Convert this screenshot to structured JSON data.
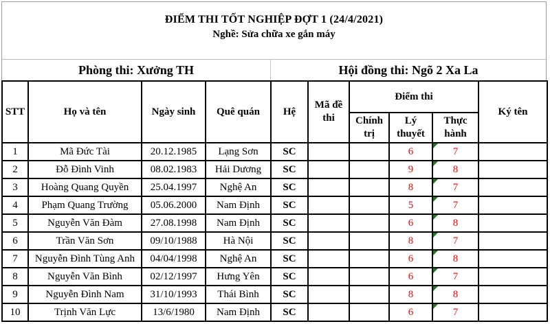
{
  "title": {
    "line1": "ĐIỂM THI TỐT NGHIỆP ĐỢT 1 (24/4/2021)",
    "line2": "Nghề: Sửa chữa xe gắn máy"
  },
  "info_band": {
    "exam_room": "Phòng thi: Xưởng TH",
    "exam_council": "Hội đồng thi: Ngõ 2 Xa La"
  },
  "table": {
    "headers": {
      "stt": "STT",
      "name": "Họ và tên",
      "dob": "Ngày sinh",
      "hometown": "Quê quán",
      "he": "Hệ",
      "ma_de_thi": "Mã đề thi",
      "diem_thi": "Điểm thi",
      "chinh_tri": "Chính trị",
      "ly_thuyet": "Lý thuyết",
      "thuc_hanh": "Thực hành",
      "ky_ten": "Ký tên"
    },
    "rows": [
      {
        "stt": "1",
        "name": "Mã Đức Tài",
        "dob": "20.12.1985",
        "hometown": "Lạng Sơn",
        "he": "SC",
        "ma_de_thi": "",
        "chinh_tri": "",
        "ly_thuyet": "6",
        "thuc_hanh": "7",
        "ky_ten": ""
      },
      {
        "stt": "2",
        "name": "Đỗ Đình Vinh",
        "dob": "08.02.1983",
        "hometown": "Hải Dương",
        "he": "SC",
        "ma_de_thi": "",
        "chinh_tri": "",
        "ly_thuyet": "9",
        "thuc_hanh": "8",
        "ky_ten": ""
      },
      {
        "stt": "3",
        "name": "Hoàng Quang Quyền",
        "dob": "25.04.1997",
        "hometown": "Nghệ An",
        "he": "SC",
        "ma_de_thi": "",
        "chinh_tri": "",
        "ly_thuyet": "8",
        "thuc_hanh": "7",
        "ky_ten": ""
      },
      {
        "stt": "4",
        "name": "Phạm Quang Trường",
        "dob": "05.06.2000",
        "hometown": "Nam Định",
        "he": "SC",
        "ma_de_thi": "",
        "chinh_tri": "",
        "ly_thuyet": "5",
        "thuc_hanh": "7",
        "ky_ten": ""
      },
      {
        "stt": "5",
        "name": "Nguyễn Văn Đàm",
        "dob": "27.08.1998",
        "hometown": "Nam Định",
        "he": "SC",
        "ma_de_thi": "",
        "chinh_tri": "",
        "ly_thuyet": "6",
        "thuc_hanh": "8",
        "ky_ten": ""
      },
      {
        "stt": "6",
        "name": "Trần Văn Sơn",
        "dob": "09/10/1988",
        "hometown": "Hà Nội",
        "he": "SC",
        "ma_de_thi": "",
        "chinh_tri": "",
        "ly_thuyet": "8",
        "thuc_hanh": "7",
        "ky_ten": ""
      },
      {
        "stt": "7",
        "name": "Nguyễn Đình Tùng Anh",
        "dob": "04/04/1998",
        "hometown": "Nghệ An",
        "he": "SC",
        "ma_de_thi": "",
        "chinh_tri": "",
        "ly_thuyet": "6",
        "thuc_hanh": "8",
        "ky_ten": ""
      },
      {
        "stt": "8",
        "name": "Nguyễn Văn Bình",
        "dob": "02/12/1997",
        "hometown": "Hưng Yên",
        "he": "SC",
        "ma_de_thi": "",
        "chinh_tri": "",
        "ly_thuyet": "6",
        "thuc_hanh": "7",
        "ky_ten": ""
      },
      {
        "stt": "9",
        "name": "Nguyễn Đình Nam",
        "dob": "31/10/1993",
        "hometown": "Thái Bình",
        "he": "SC",
        "ma_de_thi": "",
        "chinh_tri": "",
        "ly_thuyet": "8",
        "thuc_hanh": "8",
        "ky_ten": ""
      },
      {
        "stt": "10",
        "name": "Trịnh Văn Lực",
        "dob": "13/6/1980",
        "hometown": "Nam Định",
        "he": "SC",
        "ma_de_thi": "",
        "chinh_tri": "",
        "ly_thuyet": "6",
        "thuc_hanh": "7",
        "ky_ten": ""
      }
    ]
  },
  "colors": {
    "score_color": "#FF0000",
    "triangle_color": "#1F7A1F",
    "table_border": "#000000"
  }
}
